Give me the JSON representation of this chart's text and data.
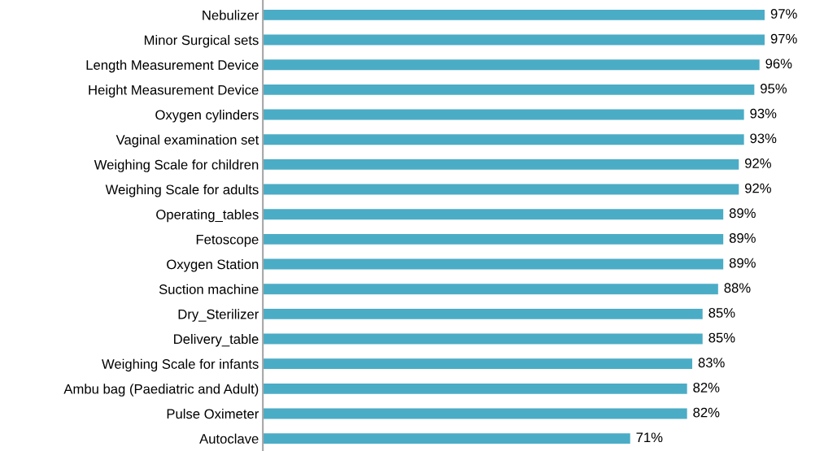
{
  "chart_data": {
    "type": "bar",
    "orientation": "horizontal",
    "categories": [
      "Nebulizer",
      "Minor Surgical sets",
      "Length Measurement Device",
      "Height Measurement Device",
      "Oxygen cylinders",
      "Vaginal examination set",
      "Weighing Scale for children",
      "Weighing Scale for adults",
      "Operating_tables",
      "Fetoscope",
      "Oxygen Station",
      "Suction machine",
      "Dry_Sterilizer",
      "Delivery_table",
      "Weighing Scale for infants",
      "Ambu bag (Paediatric and Adult)",
      "Pulse Oximeter",
      "Autoclave"
    ],
    "values": [
      97,
      97,
      96,
      95,
      93,
      93,
      92,
      92,
      89,
      89,
      89,
      88,
      85,
      85,
      83,
      82,
      82,
      71
    ],
    "value_labels": [
      "97%",
      "97%",
      "96%",
      "95%",
      "93%",
      "93%",
      "92%",
      "92%",
      "89%",
      "89%",
      "89%",
      "88%",
      "85%",
      "85%",
      "83%",
      "82%",
      "82%",
      "71%"
    ],
    "color": "#4bacc6",
    "tick_labels": "y",
    "grid": false,
    "legend": false
  }
}
